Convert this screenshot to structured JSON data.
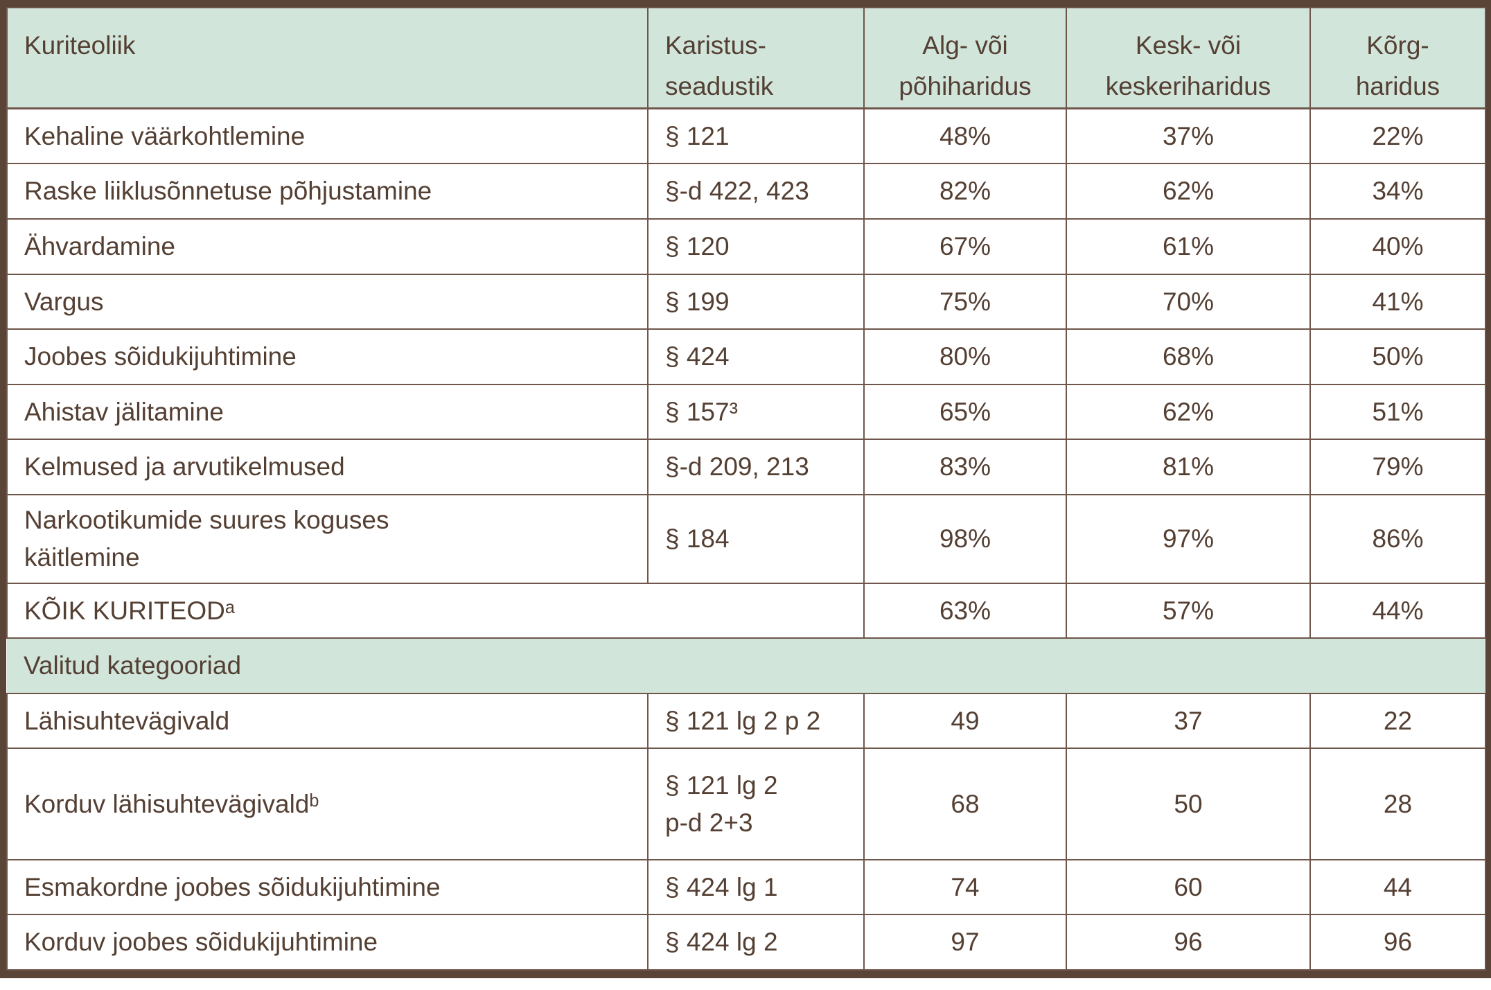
{
  "colors": {
    "header_bg": "#d1e5db",
    "outer_border": "#5a4438",
    "grid_line": "#6e564a",
    "text": "#543f33"
  },
  "table": {
    "columns": [
      {
        "label": "Kuriteoliik"
      },
      {
        "label": "Karistus-\nseadustik"
      },
      {
        "label": "Alg- või\npõhiharidus"
      },
      {
        "label": "Kesk- või\nkeskeriharidus"
      },
      {
        "label": "Kõrg-\nharidus"
      }
    ],
    "rows": [
      {
        "label": "Kehaline väärkohtlemine",
        "code": "§ 121",
        "values": [
          "48%",
          "37%",
          "22%"
        ]
      },
      {
        "label": "Raske liiklusõnnetuse põhjustamine",
        "code": "§-d 422, 423",
        "values": [
          "82%",
          "62%",
          "34%"
        ]
      },
      {
        "label": "Ähvardamine",
        "code": "§ 120",
        "values": [
          "67%",
          "61%",
          "40%"
        ]
      },
      {
        "label": "Vargus",
        "code": "§ 199",
        "values": [
          "75%",
          "70%",
          "41%"
        ]
      },
      {
        "label": "Joobes sõidukijuhtimine",
        "code": "§ 424",
        "values": [
          "80%",
          "68%",
          "50%"
        ]
      },
      {
        "label": "Ahistav jälitamine",
        "code": "§ 157³",
        "values": [
          "65%",
          "62%",
          "51%"
        ]
      },
      {
        "label": "Kelmused ja arvutikelmused",
        "code": "§-d 209, 213",
        "values": [
          "83%",
          "81%",
          "79%"
        ]
      },
      {
        "label": "Narkootikumide suures koguses\nkäitlemine",
        "code": "§ 184",
        "values": [
          "98%",
          "97%",
          "86%"
        ]
      },
      {
        "label": "KÕIK KURITEODᵃ",
        "code": "",
        "values": [
          "63%",
          "57%",
          "44%"
        ]
      },
      {
        "label": "Lähisuhtevägivald",
        "code": "§ 121 lg 2 p 2",
        "values": [
          "49",
          "37",
          "22"
        ]
      },
      {
        "label": "Korduv lähisuhtevägivaldᵇ",
        "code": "§ 121 lg 2\np-d 2+3",
        "values": [
          "68",
          "50",
          "28"
        ]
      },
      {
        "label": "Esmakordne joobes sõidukijuhtimine",
        "code": "§ 424 lg 1",
        "values": [
          "74",
          "60",
          "44"
        ]
      },
      {
        "label": "Korduv joobes sõidukijuhtimine",
        "code": "§ 424 lg 2",
        "values": [
          "97",
          "96",
          "96"
        ]
      }
    ],
    "section_header": "Valitud kategooriad"
  }
}
